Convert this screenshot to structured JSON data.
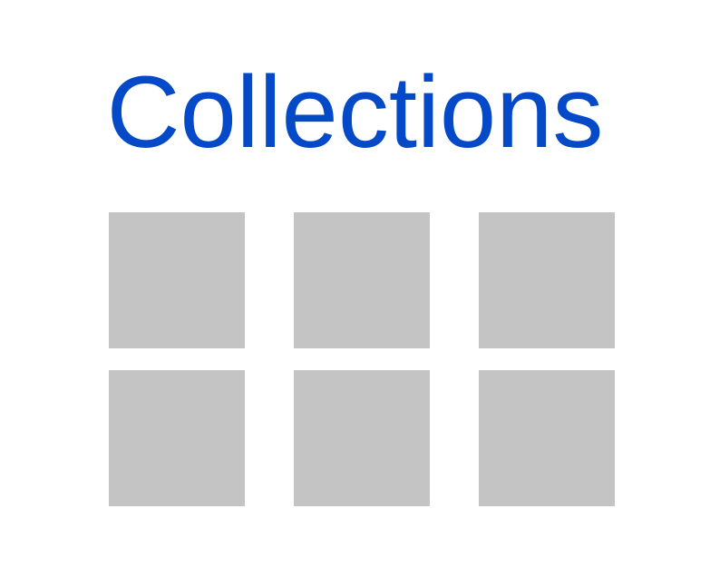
{
  "page": {
    "title": "Collections"
  },
  "colors": {
    "title": "#0349c8",
    "tile": "#c4c4c4",
    "background": "#ffffff"
  },
  "collections": {
    "items": [
      {
        "label": ""
      },
      {
        "label": ""
      },
      {
        "label": ""
      },
      {
        "label": ""
      },
      {
        "label": ""
      },
      {
        "label": ""
      }
    ]
  }
}
